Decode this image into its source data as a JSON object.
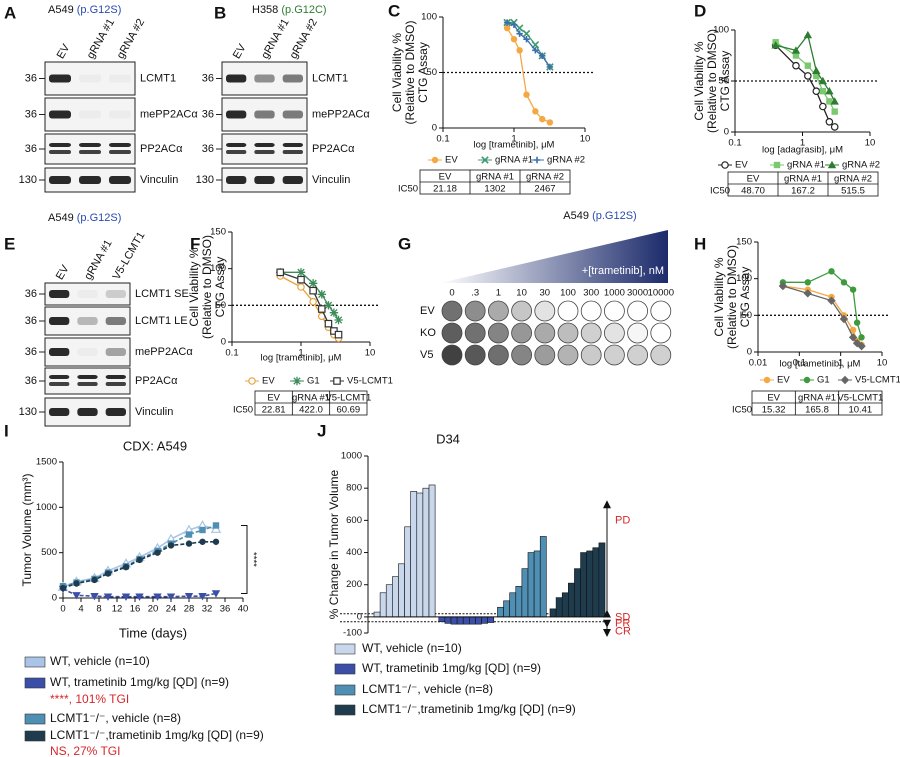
{
  "panels": {
    "A": {
      "letter": "A",
      "title": "A549",
      "title_variant": "(p.G12S)",
      "lanes": [
        "EV",
        "gRNA #1",
        "gRNA #2"
      ],
      "rows": [
        {
          "marker": 36,
          "label": "LCMT1"
        },
        {
          "marker": 36,
          "label": "mePP2ACα"
        },
        {
          "marker": 36,
          "label": "PP2ACα"
        },
        {
          "marker": 130,
          "label": "Vinculin"
        }
      ]
    },
    "B": {
      "letter": "B",
      "title": "H358",
      "title_variant": "(p.G12C)",
      "lanes": [
        "EV",
        "gRNA #1",
        "gRNA #2"
      ],
      "rows": [
        {
          "marker": 36,
          "label": "LCMT1"
        },
        {
          "marker": 36,
          "label": "mePP2ACα"
        },
        {
          "marker": 36,
          "label": "PP2ACα"
        },
        {
          "marker": 130,
          "label": "Vinculin"
        }
      ]
    },
    "E": {
      "letter": "E",
      "title": "A549",
      "title_variant": "(p.G12S)",
      "lanes": [
        "EV",
        "gRNA #1",
        "V5-LCMT1"
      ],
      "rows": [
        {
          "marker": 36,
          "label": "LCMT1 SE"
        },
        {
          "marker": 36,
          "label": "LCMT1 LE"
        },
        {
          "marker": 36,
          "label": "mePP2ACα"
        },
        {
          "marker": 36,
          "label": "PP2ACα"
        },
        {
          "marker": 130,
          "label": "Vinculin"
        }
      ]
    },
    "G": {
      "letter": "G",
      "title": "A549",
      "title_variant": "(p.G12S)",
      "gradient_label": "+[trametinib], nM",
      "doses": [
        "0",
        ".3",
        "1",
        "10",
        "30",
        "100",
        "300",
        "1000",
        "3000",
        "10000"
      ],
      "rows": [
        "EV",
        "KO",
        "V5"
      ]
    }
  },
  "chart_data": [
    {
      "type": "line",
      "letter": "C",
      "xscale": "log",
      "xlim": [
        0.1,
        10
      ],
      "xticks": [
        0.1,
        1,
        10
      ],
      "ylim": [
        0,
        100
      ],
      "yticks": [
        0,
        50,
        100
      ],
      "hline": 50,
      "xlabel": "log [trametinib], μM",
      "ylabel": [
        "Cell Viability %",
        "(Relative to DMSO)",
        "CTG Assay"
      ],
      "x": [
        0.8,
        1,
        1.2,
        1.5,
        2,
        2.5,
        3.2
      ],
      "series": [
        {
          "name": "EV",
          "color": "#f5a742",
          "marker": "circle",
          "values": [
            90,
            80,
            70,
            30,
            15,
            8,
            5
          ]
        },
        {
          "name": "gRNA #1",
          "color": "#3d9970",
          "marker": "x",
          "values": [
            95,
            95,
            90,
            85,
            75,
            65,
            55
          ]
        },
        {
          "name": "gRNA #2",
          "color": "#3a6fb0",
          "marker": "plus",
          "values": [
            95,
            93,
            85,
            80,
            70,
            65,
            55
          ]
        }
      ],
      "table": {
        "row_label": "IC50",
        "header": [
          "EV",
          "gRNA #1",
          "gRNA #2"
        ],
        "cells": [
          "21.18",
          "1302",
          "2467"
        ]
      }
    },
    {
      "type": "line",
      "letter": "D",
      "xscale": "log",
      "xlim": [
        0.1,
        10
      ],
      "xticks": [
        0.1,
        1,
        10
      ],
      "ylim": [
        0,
        100
      ],
      "yticks": [
        0,
        50,
        100
      ],
      "hline": 50,
      "xlabel": "log [adagrasib], μM",
      "ylabel": [
        "Cell Viability %",
        "(Relative to DMSO)",
        "CTG Assay"
      ],
      "x": [
        0.4,
        0.8,
        1.2,
        1.6,
        2,
        2.5,
        3
      ],
      "series": [
        {
          "name": "EV",
          "color": "#222222",
          "marker": "circle-open",
          "values": [
            85,
            65,
            55,
            40,
            25,
            10,
            5
          ]
        },
        {
          "name": "gRNA #1",
          "color": "#7bc96f",
          "marker": "square",
          "values": [
            88,
            75,
            65,
            55,
            40,
            30,
            20
          ]
        },
        {
          "name": "gRNA #2",
          "color": "#2e7d32",
          "marker": "triangle",
          "values": [
            85,
            80,
            95,
            60,
            50,
            40,
            30
          ]
        }
      ],
      "table": {
        "row_label": "IC50",
        "header": [
          "EV",
          "gRNA #1",
          "gRNA #2"
        ],
        "cells": [
          "48.70",
          "167.2",
          "515.5"
        ]
      }
    },
    {
      "type": "line",
      "letter": "F",
      "xscale": "log",
      "xlim": [
        0.1,
        10
      ],
      "xticks": [
        0.1,
        1,
        10
      ],
      "ylim": [
        0,
        150
      ],
      "yticks": [
        0,
        50,
        100,
        150
      ],
      "hline": 50,
      "xlabel": "log [trametinib], μM",
      "ylabel": [
        "Cell Viability %",
        "(Relative to DMSO)",
        "CTG Assay"
      ],
      "x": [
        0.5,
        1,
        1.5,
        2,
        2.5,
        3,
        3.5
      ],
      "series": [
        {
          "name": "EV",
          "color": "#e8a33d",
          "marker": "circle-open",
          "values": [
            90,
            75,
            55,
            35,
            20,
            10,
            5
          ]
        },
        {
          "name": "G1",
          "color": "#3d8b5a",
          "marker": "star",
          "values": [
            95,
            95,
            80,
            65,
            50,
            40,
            30
          ]
        },
        {
          "name": "V5-LCMT1",
          "color": "#333333",
          "marker": "square-open",
          "values": [
            95,
            85,
            70,
            45,
            25,
            15,
            10
          ]
        }
      ],
      "table": {
        "row_label": "IC50",
        "header": [
          "EV",
          "gRNA #1",
          "V5-LCMT1"
        ],
        "cells": [
          "22.81",
          "422.0",
          "60.69"
        ]
      }
    },
    {
      "type": "line",
      "letter": "H",
      "xscale": "log",
      "xlim": [
        0.01,
        10
      ],
      "xticks": [
        0.01,
        0.1,
        1,
        10
      ],
      "ylim": [
        0,
        150
      ],
      "yticks": [
        0,
        50,
        100,
        150
      ],
      "hline": 50,
      "xlabel": "log [trametinib], μM",
      "ylabel": [
        "Cell Viability %",
        "(Relative to DMSO)",
        "CTG Assay"
      ],
      "x": [
        0.04,
        0.16,
        0.6,
        1.2,
        2,
        2.5,
        3.2
      ],
      "series": [
        {
          "name": "EV",
          "color": "#f5a742",
          "marker": "circle",
          "values": [
            90,
            85,
            75,
            50,
            30,
            15,
            10
          ]
        },
        {
          "name": "G1",
          "color": "#3d9b3d",
          "marker": "circle",
          "values": [
            95,
            95,
            110,
            95,
            85,
            40,
            20
          ]
        },
        {
          "name": "V5-LCMT1",
          "color": "#666666",
          "marker": "diamond",
          "values": [
            90,
            80,
            70,
            45,
            20,
            12,
            8
          ]
        }
      ],
      "table": {
        "row_label": "IC50",
        "header": [
          "EV",
          "gRNA #1",
          "V5-LCMT1"
        ],
        "cells": [
          "15.32",
          "165.8",
          "10.41"
        ]
      }
    },
    {
      "type": "line",
      "letter": "I",
      "title": "CDX: A549",
      "xlim": [
        0,
        40
      ],
      "xticks": [
        0,
        4,
        8,
        12,
        16,
        20,
        24,
        28,
        32,
        36,
        40
      ],
      "ylim": [
        0,
        1500
      ],
      "yticks": [
        0,
        500,
        1000,
        1500
      ],
      "xlabel": "Time (days)",
      "ylabel": [
        "Tumor Volume (mm³)"
      ],
      "annotation": "****",
      "x": [
        0,
        3,
        7,
        10,
        14,
        17,
        21,
        24,
        28,
        31,
        34
      ],
      "series": [
        {
          "name": "WT, vehicle (n=10)",
          "color": "#a9c4e6",
          "marker": "triangle-open",
          "values": [
            120,
            180,
            220,
            300,
            380,
            450,
            550,
            650,
            750,
            800,
            760
          ]
        },
        {
          "name": "WT, trametinib 1mg/kg [QD] (n=9)",
          "color": "#3b4fa8",
          "marker": "triangle-down",
          "note": "****,  101% TGI",
          "values": [
            100,
            30,
            20,
            15,
            15,
            15,
            15,
            15,
            20,
            20,
            50
          ]
        },
        {
          "name": "LCMT1⁻/⁻, vehicle (n=8)",
          "color": "#4f8fb3",
          "marker": "square",
          "values": [
            130,
            170,
            210,
            280,
            350,
            430,
            520,
            600,
            700,
            750,
            800
          ]
        },
        {
          "name": "LCMT1⁻/⁻,trametinib 1mg/kg [QD] (n=9)",
          "color": "#1f3c4e",
          "marker": "circle",
          "note": "NS,  27% TGI",
          "values": [
            110,
            160,
            200,
            270,
            340,
            420,
            500,
            580,
            600,
            620,
            620
          ]
        }
      ]
    },
    {
      "type": "bar",
      "letter": "J",
      "title": "D34",
      "ylim": [
        -100,
        1000
      ],
      "yticks": [
        -100,
        0,
        200,
        400,
        600,
        800,
        1000
      ],
      "hlines": [
        20,
        -30
      ],
      "ylabel": [
        "% Change in Tumor Volume"
      ],
      "zones": [
        "PD",
        "SD",
        "PR",
        "CR"
      ],
      "series": [
        {
          "name": "WT, vehicle (n=10)",
          "color": "#c9d7ec",
          "values": [
            30,
            150,
            200,
            250,
            330,
            560,
            780,
            770,
            800,
            820
          ]
        },
        {
          "name": "WT, trametinib 1mg/kg [QD] (n=9)",
          "color": "#3b4fa8",
          "values": [
            -30,
            -40,
            -45,
            -45,
            -45,
            -45,
            -45,
            -40,
            -35
          ]
        },
        {
          "name": "LCMT1⁻/⁻, vehicle (n=8)",
          "color": "#4f8fb3",
          "values": [
            60,
            100,
            150,
            190,
            300,
            400,
            410,
            500
          ]
        },
        {
          "name": "LCMT1⁻/⁻,trametinib 1mg/kg [QD] (n=9)",
          "color": "#1f3c4e",
          "values": [
            50,
            120,
            150,
            210,
            300,
            400,
            410,
            430,
            460
          ]
        }
      ]
    }
  ]
}
